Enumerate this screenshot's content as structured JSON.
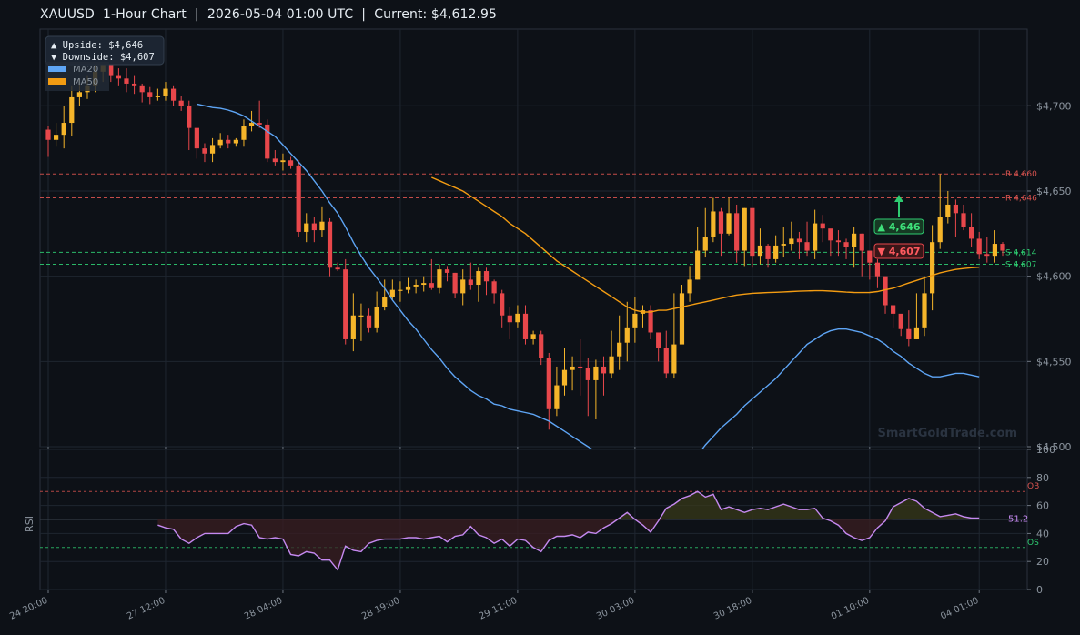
{
  "title": "XAUUSD  1-Hour Chart  |  2026-05-04 01:00 UTC  |  Current: $4,612.95",
  "watermark": "SmartGoldTrade.com",
  "colors": {
    "background": "#0d1117",
    "grid": "#1f2630",
    "up": "#f5b52a",
    "down": "#e8474b",
    "ma20": "#5ea5f5",
    "ma50": "#f39c12",
    "resistance": "#d9534f",
    "support": "#2ecc71",
    "rsi": "#c589f0",
    "axis_text": "#8b949e"
  },
  "info_box": {
    "upside": "▲ Upside:   $4,646",
    "downside": "▼ Downside: $4,607"
  },
  "legend": [
    "MA20",
    "MA50"
  ],
  "badges": {
    "up": "▲ 4,646",
    "down": "▼ 4,607"
  },
  "chart_data": [
    {
      "type": "candlestick",
      "title": "XAUUSD  1-Hour Chart",
      "ylim": [
        4500,
        4745
      ],
      "yticks": [
        "$4,500",
        "$4,550",
        "$4,600",
        "$4,650",
        "$4,700"
      ],
      "ytick_values": [
        4500,
        4550,
        4600,
        4650,
        4700
      ],
      "xticks": [
        "24 20:00",
        "27 12:00",
        "28 04:00",
        "28 19:00",
        "29 11:00",
        "30 03:00",
        "30 18:00",
        "01 10:00",
        "04 01:00"
      ],
      "xtick_index": [
        0,
        15,
        30,
        45,
        60,
        75,
        90,
        105,
        119
      ],
      "grid": true,
      "levels": [
        {
          "label": "R 4,660",
          "value": 4660,
          "kind": "resistance"
        },
        {
          "label": "R 4,646",
          "value": 4646,
          "kind": "resistance"
        },
        {
          "label": "S 4,614",
          "value": 4614,
          "kind": "support"
        },
        {
          "label": "S 4,607",
          "value": 4607,
          "kind": "support"
        }
      ],
      "closes": [
        4680,
        4683,
        4690,
        4705,
        4708,
        4712,
        4720,
        4725,
        4718,
        4716,
        4713,
        4712,
        4708,
        4705,
        4706,
        4710,
        4703,
        4700,
        4687,
        4675,
        4672,
        4677,
        4680,
        4678,
        4680,
        4688,
        4690,
        4689,
        4669,
        4667,
        4668,
        4665,
        4626,
        4631,
        4627,
        4632,
        4605,
        4604,
        4563,
        4577,
        4577,
        4570,
        4582,
        4588,
        4592,
        4592,
        4594,
        4595,
        4596,
        4593,
        4604,
        4602,
        4590,
        4598,
        4595,
        4603,
        4597,
        4590,
        4577,
        4573,
        4578,
        4563,
        4566,
        4552,
        4522,
        4536,
        4545,
        4547,
        4546,
        4539,
        4547,
        4543,
        4553,
        4561,
        4570,
        4578,
        4580,
        4567,
        4558,
        4543,
        4560,
        4590,
        4598,
        4615,
        4623,
        4638,
        4625,
        4637,
        4615,
        4640,
        4612,
        4618,
        4610,
        4618,
        4619,
        4622,
        4620,
        4615,
        4631,
        4628,
        4621,
        4620,
        4617,
        4625,
        4615,
        4608,
        4600,
        4583,
        4578,
        4569,
        4563,
        4570,
        4590,
        4620,
        4635,
        4642,
        4637,
        4629,
        4622,
        4613,
        4612,
        4619,
        4615
      ],
      "highs": [
        4688,
        4690,
        4700,
        4712,
        4716,
        4718,
        4726,
        4733,
        4730,
        4722,
        4722,
        4718,
        4713,
        4711,
        4710,
        4714,
        4712,
        4706,
        4703,
        4684,
        4678,
        4681,
        4684,
        4683,
        4681,
        4692,
        4697,
        4703,
        4692,
        4674,
        4672,
        4670,
        4668,
        4637,
        4635,
        4641,
        4634,
        4608,
        4610,
        4590,
        4584,
        4581,
        4591,
        4598,
        4598,
        4597,
        4599,
        4598,
        4600,
        4610,
        4607,
        4606,
        4602,
        4604,
        4608,
        4605,
        4605,
        4598,
        4592,
        4582,
        4583,
        4583,
        4568,
        4568,
        4555,
        4547,
        4558,
        4553,
        4563,
        4552,
        4551,
        4553,
        4568,
        4577,
        4585,
        4588,
        4583,
        4583,
        4563,
        4568,
        4590,
        4595,
        4606,
        4629,
        4640,
        4646,
        4640,
        4646,
        4642,
        4640,
        4622,
        4628,
        4619,
        4624,
        4629,
        4632,
        4626,
        4632,
        4639,
        4636,
        4625,
        4627,
        4622,
        4629,
        4625,
        4613,
        4610,
        4595,
        4583,
        4575,
        4580,
        4590,
        4600,
        4630,
        4660,
        4650,
        4645,
        4642,
        4637,
        4626,
        4623,
        4627,
        4620
      ],
      "lows": [
        4670,
        4676,
        4675,
        4682,
        4700,
        4704,
        4708,
        4714,
        4714,
        4712,
        4708,
        4707,
        4702,
        4701,
        4703,
        4703,
        4700,
        4697,
        4674,
        4669,
        4667,
        4667,
        4675,
        4675,
        4676,
        4676,
        4685,
        4687,
        4667,
        4665,
        4662,
        4663,
        4623,
        4620,
        4620,
        4623,
        4600,
        4603,
        4560,
        4556,
        4562,
        4567,
        4567,
        4580,
        4586,
        4585,
        4590,
        4590,
        4591,
        4592,
        4590,
        4597,
        4587,
        4583,
        4592,
        4585,
        4589,
        4584,
        4570,
        4563,
        4570,
        4560,
        4560,
        4548,
        4510,
        4518,
        4530,
        4533,
        4530,
        4518,
        4516,
        4530,
        4540,
        4545,
        4550,
        4561,
        4570,
        4563,
        4550,
        4540,
        4540,
        4565,
        4585,
        4598,
        4611,
        4620,
        4612,
        4624,
        4608,
        4606,
        4605,
        4607,
        4605,
        4608,
        4611,
        4615,
        4610,
        4612,
        4610,
        4620,
        4612,
        4612,
        4610,
        4605,
        4600,
        4598,
        4593,
        4578,
        4570,
        4565,
        4559,
        4563,
        4565,
        4580,
        4616,
        4631,
        4623,
        4627,
        4617,
        4610,
        4608,
        4608,
        4612
      ],
      "ma20": [
        null,
        null,
        null,
        null,
        null,
        null,
        null,
        null,
        null,
        null,
        null,
        null,
        null,
        null,
        null,
        null,
        null,
        null,
        null,
        4701,
        4700,
        4699,
        4698.5,
        4697.5,
        4696,
        4694,
        4691,
        4688,
        4685,
        4682,
        4677,
        4672,
        4667,
        4662,
        4656,
        4650,
        4643,
        4637,
        4629,
        4620,
        4612,
        4605,
        4599,
        4593,
        4586,
        4580,
        4574,
        4569,
        4563,
        4557,
        4552,
        4546,
        4541,
        4537,
        4533,
        4530,
        4528,
        4525,
        4524,
        4522,
        4521,
        4520,
        4519,
        4517,
        4515,
        4512,
        4509,
        4506,
        4503,
        4500,
        4497,
        4494,
        4491,
        4488,
        4485,
        4483,
        4481,
        4480,
        4479,
        4480,
        4482,
        4485,
        4490,
        4495,
        4501,
        4506,
        4511,
        4515,
        4519,
        4524,
        4528,
        4532,
        4536,
        4540,
        4545,
        4550,
        4555,
        4560,
        4563,
        4566,
        4568,
        4569,
        4569,
        4568,
        4567,
        4565,
        4563,
        4560,
        4556,
        4553,
        4549,
        4546,
        4543,
        4541,
        4541,
        4542,
        4543,
        4543,
        4542,
        4541
      ],
      "ma50": [
        null,
        null,
        null,
        null,
        null,
        null,
        null,
        null,
        null,
        null,
        null,
        null,
        null,
        null,
        null,
        null,
        null,
        null,
        null,
        null,
        null,
        null,
        null,
        null,
        null,
        null,
        null,
        null,
        null,
        null,
        null,
        null,
        null,
        null,
        null,
        null,
        null,
        null,
        null,
        null,
        null,
        null,
        null,
        null,
        null,
        null,
        null,
        null,
        null,
        4658,
        4656,
        4654,
        4652,
        4650,
        4647,
        4644,
        4641,
        4638,
        4635,
        4631,
        4628,
        4625,
        4621,
        4617,
        4613,
        4609,
        4606,
        4603,
        4600,
        4597,
        4594,
        4591,
        4588,
        4585,
        4582,
        4580,
        4579,
        4579,
        4580,
        4580,
        4581,
        4582,
        4583,
        4584,
        4585,
        4586,
        4587,
        4588,
        4589,
        4589.5,
        4590,
        4590.2,
        4590.4,
        4590.6,
        4590.8,
        4591,
        4591.2,
        4591.4,
        4591.5,
        4591.5,
        4591.3,
        4591,
        4590.7,
        4590.5,
        4590.4,
        4590.5,
        4591,
        4592,
        4593,
        4594.5,
        4596,
        4597.5,
        4599,
        4600.5,
        4602,
        4603,
        4604,
        4604.5,
        4605,
        4605.3
      ]
    },
    {
      "type": "line",
      "ylabel": "RSI",
      "ylim": [
        0,
        100
      ],
      "yticks": [
        "0",
        "20",
        "40",
        "60",
        "80",
        "100"
      ],
      "ytick_values": [
        0,
        20,
        40,
        60,
        80,
        100
      ],
      "levels": [
        {
          "label": "OB",
          "value": 70
        },
        {
          "label": "OS",
          "value": 30
        }
      ],
      "midline": 50,
      "last_label": "51.2",
      "start_index": 14,
      "rsi": [
        46,
        44,
        43,
        36,
        33,
        37,
        40,
        40,
        40,
        40,
        45,
        47,
        46,
        37,
        36,
        37,
        36,
        25,
        24,
        27,
        26,
        21,
        21,
        14,
        31,
        28,
        27,
        33,
        35,
        36,
        36,
        36,
        37,
        37,
        36,
        37,
        38,
        34,
        38,
        39,
        45,
        39,
        37,
        33,
        36,
        31,
        36,
        35,
        30,
        27,
        35,
        38,
        38,
        39,
        37,
        41,
        40,
        44,
        47,
        51,
        55,
        50,
        46,
        41,
        49,
        58,
        61,
        65,
        67,
        70,
        66,
        68,
        57,
        59,
        57,
        55,
        57,
        58,
        57,
        59,
        61,
        59,
        57,
        57,
        58,
        51,
        49,
        46,
        40,
        37,
        35,
        37,
        44,
        49,
        59,
        62,
        65,
        63,
        58,
        55,
        52,
        53,
        54,
        52,
        51,
        51
      ]
    }
  ]
}
